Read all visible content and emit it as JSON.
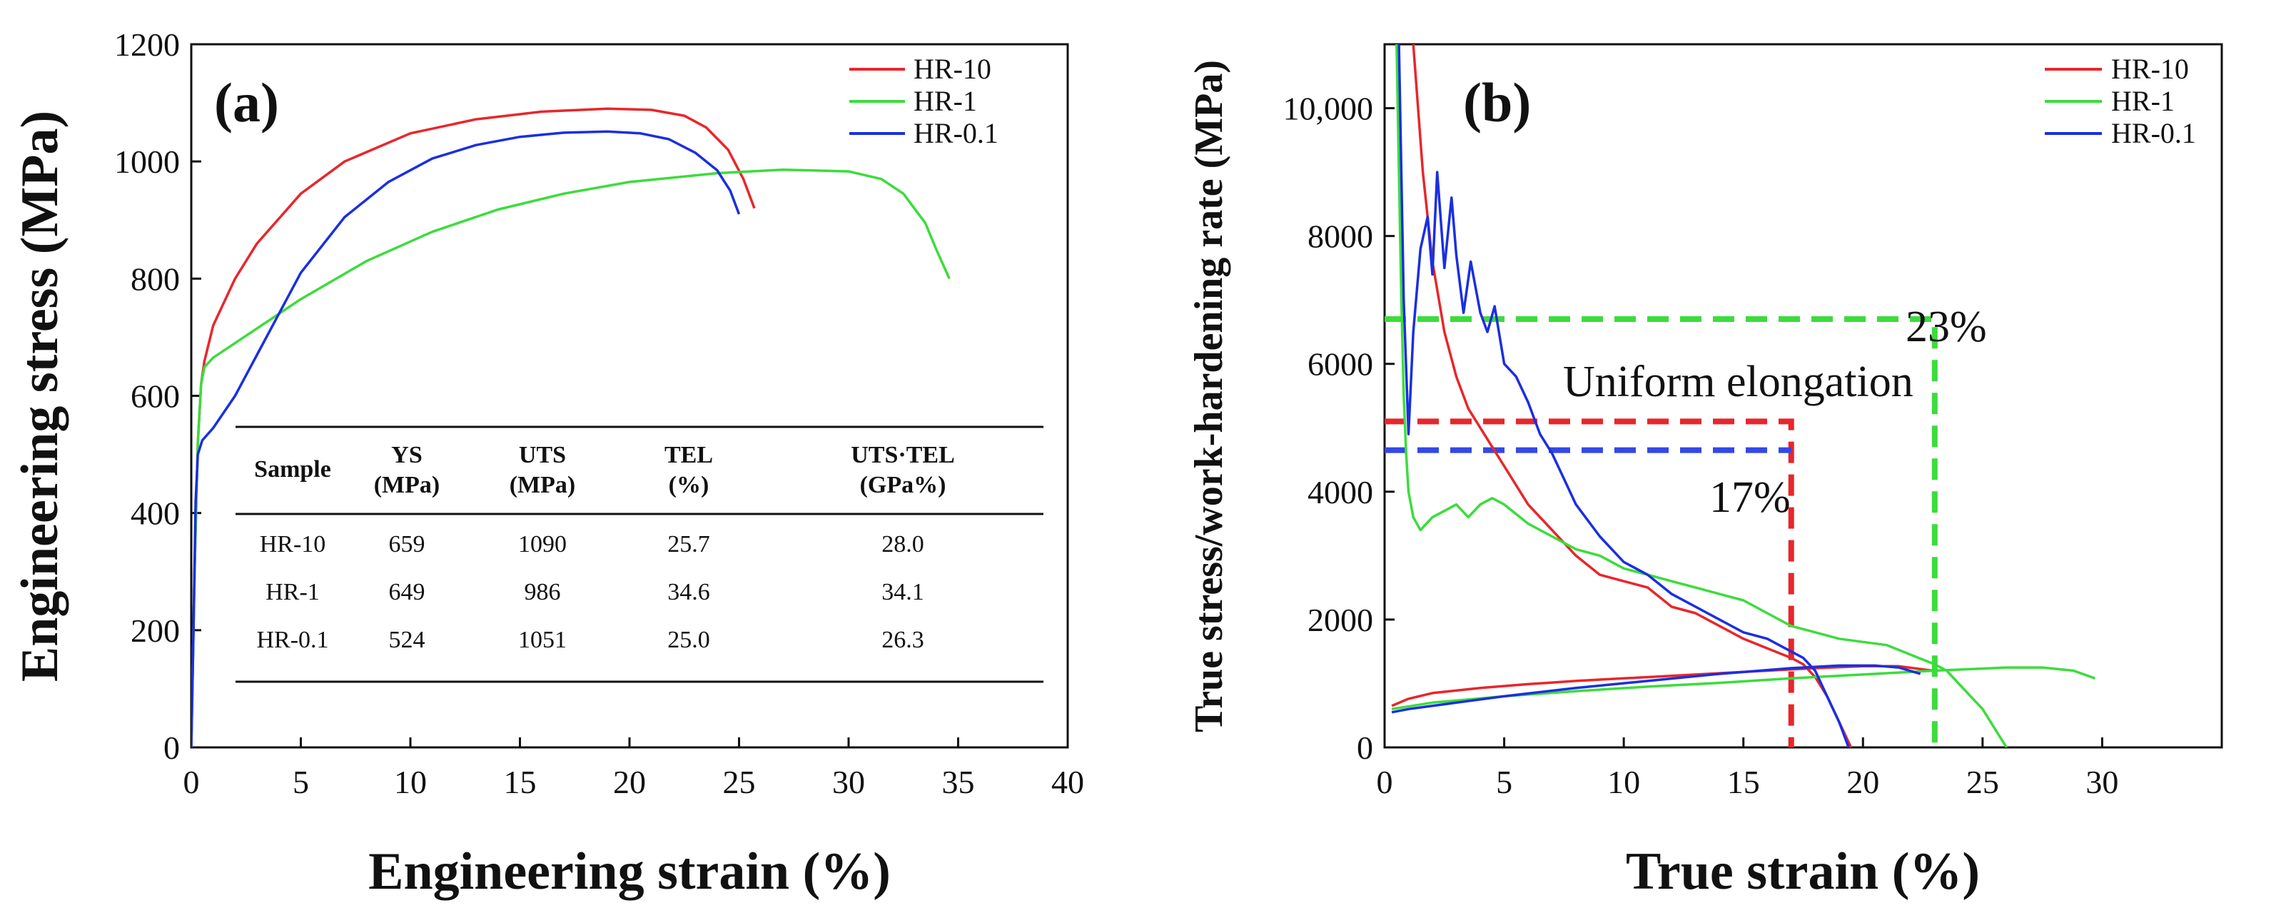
{
  "chart_data": [
    {
      "type": "line",
      "panel_label": "(a)",
      "xlabel": "Engineering strain (%)",
      "ylabel": "Engineering stress (MPa)",
      "xlim": [
        0,
        40
      ],
      "ylim": [
        0,
        1200
      ],
      "xticks": [
        0,
        5,
        10,
        15,
        20,
        25,
        30,
        35,
        40
      ],
      "yticks": [
        0,
        200,
        400,
        600,
        800,
        1000,
        1200
      ],
      "legend": [
        "HR-10",
        "HR-1",
        "HR-0.1"
      ],
      "series": [
        {
          "name": "HR-10",
          "color": "#e8262b",
          "x": [
            0,
            0.15,
            0.3,
            0.45,
            0.6,
            1,
            2,
            3,
            5,
            7,
            10,
            13,
            16,
            19,
            21,
            22.5,
            23.5,
            24.5,
            25.2,
            25.7
          ],
          "y": [
            0,
            300,
            520,
            620,
            659,
            720,
            800,
            860,
            945,
            1000,
            1048,
            1072,
            1085,
            1090,
            1088,
            1078,
            1058,
            1020,
            970,
            920
          ]
        },
        {
          "name": "HR-1",
          "color": "#3cdc3c",
          "x": [
            0,
            0.15,
            0.3,
            0.45,
            0.6,
            1,
            3,
            5,
            8,
            11,
            14,
            17,
            20,
            24,
            27,
            30,
            31.5,
            32.5,
            33.5,
            34,
            34.6
          ],
          "y": [
            0,
            300,
            520,
            620,
            649,
            665,
            715,
            765,
            830,
            880,
            918,
            945,
            965,
            980,
            986,
            983,
            970,
            945,
            895,
            850,
            800
          ]
        },
        {
          "name": "HR-0.1",
          "color": "#1a2fe0",
          "x": [
            0,
            0.1,
            0.2,
            0.3,
            0.5,
            1,
            2,
            3,
            4,
            5,
            7,
            9,
            11,
            13,
            15,
            17,
            19,
            20.5,
            21.8,
            23,
            24,
            24.6,
            25.0
          ],
          "y": [
            0,
            200,
            420,
            500,
            524,
            545,
            600,
            670,
            740,
            810,
            905,
            965,
            1005,
            1028,
            1042,
            1049,
            1051,
            1048,
            1038,
            1015,
            985,
            950,
            910
          ]
        }
      ],
      "table": {
        "header": [
          "Sample",
          "YS\n(MPa)",
          "UTS\n(MPa)",
          "TEL\n(%)",
          "UTS·TEL\n(GPa%)"
        ],
        "rows": [
          [
            "HR-10",
            "659",
            "1090",
            "25.7",
            "28.0"
          ],
          [
            "HR-1",
            "649",
            "986",
            "34.6",
            "34.1"
          ],
          [
            "HR-0.1",
            "524",
            "1051",
            "25.0",
            "26.3"
          ]
        ]
      }
    },
    {
      "type": "line",
      "panel_label": "(b)",
      "xlabel": "True strain (%)",
      "ylabel": "True stress/work-hardening rate (MPa)",
      "xlim": [
        0,
        35
      ],
      "ylim": [
        0,
        11000
      ],
      "xticks": [
        0,
        5,
        10,
        15,
        20,
        25,
        30
      ],
      "yticks": [
        0,
        2000,
        4000,
        6000,
        8000,
        10000
      ],
      "ytick_labels": [
        "0",
        "2000",
        "4000",
        "6000",
        "8000",
        "10,000"
      ],
      "legend": [
        "HR-10",
        "HR-1",
        "HR-0.1"
      ],
      "series": [
        {
          "name": "HR-10 true stress",
          "color": "#e8262b",
          "x": [
            0.3,
            1,
            2,
            4,
            6,
            8,
            10,
            12,
            14,
            16,
            18,
            20,
            21.5,
            22.9
          ],
          "y": [
            650,
            760,
            850,
            930,
            990,
            1040,
            1080,
            1120,
            1160,
            1200,
            1240,
            1270,
            1270,
            1200
          ]
        },
        {
          "name": "HR-10 work-hardening",
          "color": "#e8262b",
          "x": [
            1.2,
            1.6,
            2,
            2.5,
            3,
            3.5,
            4,
            4.5,
            5,
            6,
            7,
            8,
            9,
            10,
            11,
            12,
            13,
            14,
            15,
            16,
            17,
            17.5,
            18,
            18.5,
            19,
            19.5
          ],
          "y": [
            11000,
            9000,
            7600,
            6500,
            5800,
            5300,
            5000,
            4700,
            4400,
            3800,
            3400,
            3000,
            2700,
            2600,
            2500,
            2200,
            2100,
            1900,
            1700,
            1550,
            1400,
            1300,
            1100,
            800,
            400,
            0
          ]
        },
        {
          "name": "HR-1 true stress",
          "color": "#3cdc3c",
          "x": [
            0.3,
            2,
            5,
            8,
            11,
            14,
            17,
            20,
            23,
            26,
            27.5,
            28.8,
            29.7
          ],
          "y": [
            600,
            700,
            800,
            880,
            950,
            1010,
            1080,
            1140,
            1200,
            1250,
            1250,
            1200,
            1080
          ]
        },
        {
          "name": "HR-1 work-hardening",
          "color": "#3cdc3c",
          "x": [
            0.5,
            0.6,
            0.7,
            0.8,
            0.9,
            1,
            1.2,
            1.5,
            2,
            2.5,
            3,
            3.5,
            4,
            4.5,
            5,
            6,
            7,
            8,
            9,
            10,
            11,
            12,
            13,
            14,
            15,
            16,
            17,
            18,
            19,
            20,
            21,
            22,
            23,
            23.5,
            24,
            24.5,
            25,
            25.5,
            26
          ],
          "y": [
            11000,
            9000,
            7000,
            5500,
            4600,
            4000,
            3600,
            3400,
            3600,
            3700,
            3800,
            3600,
            3800,
            3900,
            3800,
            3500,
            3300,
            3100,
            3000,
            2800,
            2700,
            2600,
            2500,
            2400,
            2300,
            2100,
            1900,
            1800,
            1700,
            1650,
            1600,
            1450,
            1300,
            1200,
            1000,
            800,
            600,
            300,
            0
          ]
        },
        {
          "name": "HR-0.1 true stress",
          "color": "#1a2fe0",
          "x": [
            0.3,
            1,
            3,
            5,
            8,
            11,
            14,
            17,
            19,
            20.5,
            21.5,
            22.4
          ],
          "y": [
            550,
            600,
            700,
            800,
            930,
            1040,
            1150,
            1240,
            1280,
            1280,
            1250,
            1150
          ]
        },
        {
          "name": "HR-0.1 work-hardening",
          "color": "#1a2fe0",
          "x": [
            0.6,
            0.8,
            1,
            1.2,
            1.5,
            1.8,
            2,
            2.2,
            2.5,
            2.8,
            3,
            3.3,
            3.6,
            4,
            4.3,
            4.6,
            5,
            5.5,
            6,
            6.5,
            7,
            7.5,
            8,
            9,
            10,
            11,
            12,
            13,
            14,
            15,
            16,
            17,
            17.5,
            18,
            18.5,
            19,
            19.4
          ],
          "y": [
            11000,
            7000,
            4900,
            6500,
            7800,
            8300,
            7400,
            9000,
            7500,
            8600,
            7700,
            6800,
            7600,
            6800,
            6500,
            6900,
            6000,
            5800,
            5400,
            4900,
            4600,
            4200,
            3800,
            3300,
            2900,
            2700,
            2400,
            2200,
            2000,
            1800,
            1700,
            1500,
            1400,
            1200,
            800,
            400,
            0
          ]
        }
      ],
      "annotations": {
        "uniform_elongation_label": "Uniform elongation",
        "hr1_pct": "23%",
        "hr10_pct": "17%",
        "hr1_marker": {
          "strain": 23,
          "level": 6700
        },
        "hr10_marker": {
          "strain": 17,
          "level": 5100
        },
        "hr01_marker": {
          "strain": 17,
          "level": 4650
        }
      }
    }
  ]
}
